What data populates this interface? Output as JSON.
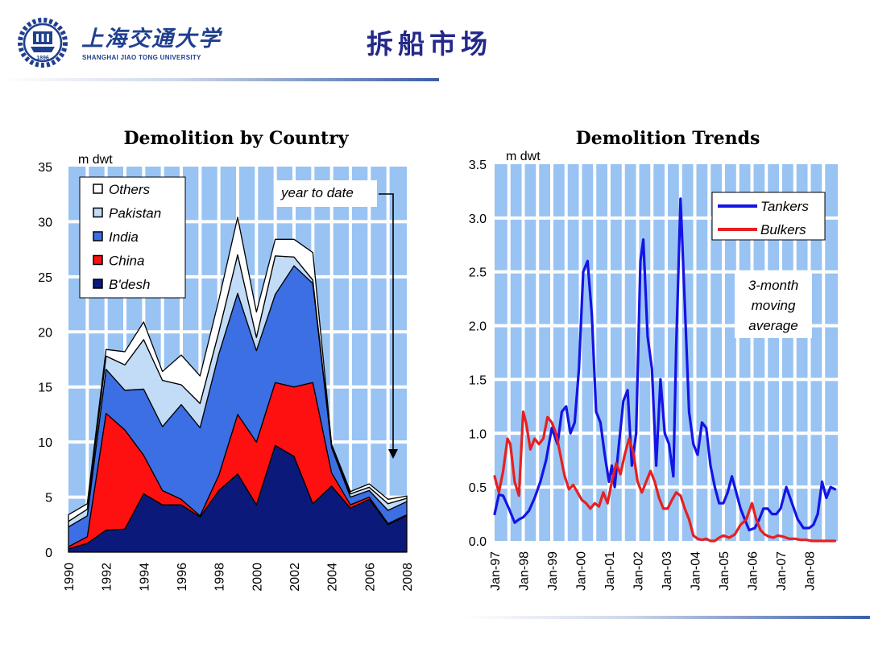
{
  "header": {
    "logo_cn": "上海交通大学",
    "logo_en": "SHANGHAI JIAO TONG UNIVERSITY",
    "logo_year": "1896",
    "slide_title": "拆船市场"
  },
  "colors": {
    "title": "#23288a",
    "plot_bg": "#99c3f2",
    "grid": "#ffffff",
    "bdesh": "#0b1a7a",
    "china": "#ff1010",
    "india": "#3b6fe3",
    "pakistan": "#c2dcf7",
    "others": "#ffffff",
    "tankers": "#1414e6",
    "bulkers": "#e62020"
  },
  "chart_data": [
    {
      "type": "area",
      "stacked": true,
      "title": "Demolition by Country",
      "ylabel": "m dwt",
      "ylim": [
        0,
        35
      ],
      "yticks": [
        0,
        5,
        10,
        15,
        20,
        25,
        30,
        35
      ],
      "xlim": [
        1990,
        2008
      ],
      "xticks": [
        1990,
        1992,
        1994,
        1996,
        1998,
        2000,
        2002,
        2004,
        2006,
        2008
      ],
      "grid": true,
      "legend": "top-left",
      "annotation": "year to date",
      "x": [
        1990,
        1991,
        1992,
        1993,
        1994,
        1995,
        1996,
        1997,
        1998,
        1999,
        2000,
        2001,
        2002,
        2003,
        2004,
        2005,
        2006,
        2007,
        2008
      ],
      "series": [
        {
          "name": "B'desh",
          "values": [
            0.3,
            0.8,
            2.0,
            2.1,
            5.3,
            4.3,
            4.3,
            3.2,
            5.6,
            7.1,
            4.3,
            9.7,
            8.7,
            4.4,
            6.0,
            4.0,
            4.8,
            2.5,
            3.3
          ]
        },
        {
          "name": "China",
          "values": [
            0.2,
            0.6,
            10.6,
            9.0,
            3.5,
            1.3,
            0.5,
            0.1,
            1.4,
            5.4,
            5.7,
            5.7,
            6.3,
            11.0,
            1.2,
            0.3,
            0.2,
            0.1,
            0.1
          ]
        },
        {
          "name": "India",
          "values": [
            1.8,
            1.9,
            4.0,
            3.6,
            6.0,
            5.8,
            8.6,
            8.0,
            11.0,
            11.0,
            8.3,
            8.0,
            11.0,
            9.0,
            2.3,
            0.7,
            0.6,
            1.2,
            1.2
          ]
        },
        {
          "name": "Pakistan",
          "values": [
            0.5,
            0.6,
            1.2,
            2.3,
            4.5,
            4.2,
            1.8,
            2.2,
            2.0,
            3.5,
            1.2,
            3.5,
            0.8,
            0.3,
            0.1,
            0.3,
            0.3,
            0.6,
            0.3
          ]
        },
        {
          "name": "Others",
          "values": [
            0.6,
            0.5,
            0.6,
            1.2,
            1.6,
            0.8,
            2.7,
            2.5,
            2.9,
            3.4,
            2.3,
            1.5,
            1.6,
            2.5,
            0.2,
            0.2,
            0.3,
            0.4,
            0.2
          ]
        }
      ]
    },
    {
      "type": "line",
      "title": "Demolition Trends",
      "ylabel": "m dwt",
      "ylim": [
        0,
        3.5
      ],
      "yticks": [
        "0.0",
        "0.5",
        "1.0",
        "1.5",
        "2.0",
        "2.5",
        "3.0",
        "3.5"
      ],
      "xlim": [
        1997.0,
        2009.0
      ],
      "xtick_labels": [
        "Jan-97",
        "Jan-98",
        "Jan-99",
        "Jan-00",
        "Jan-01",
        "Jan-02",
        "Jan-03",
        "Jan-04",
        "Jan-05",
        "Jan-06",
        "Jan-07",
        "Jan-08"
      ],
      "grid": true,
      "legend": "top-right",
      "annotation": "3-month moving average",
      "series": [
        {
          "name": "Tankers",
          "x": [
            1997.0,
            1997.15,
            1997.3,
            1997.5,
            1997.7,
            1997.85,
            1998.0,
            1998.2,
            1998.4,
            1998.6,
            1998.8,
            1999.0,
            1999.2,
            1999.35,
            1999.5,
            1999.65,
            1999.8,
            1999.95,
            2000.1,
            2000.25,
            2000.4,
            2000.55,
            2000.7,
            2000.85,
            2001.0,
            2001.1,
            2001.2,
            2001.35,
            2001.5,
            2001.65,
            2001.8,
            2001.95,
            2002.1,
            2002.2,
            2002.35,
            2002.5,
            2002.65,
            2002.8,
            2002.95,
            2003.1,
            2003.25,
            2003.35,
            2003.5,
            2003.65,
            2003.8,
            2003.95,
            2004.1,
            2004.25,
            2004.4,
            2004.55,
            2004.7,
            2004.85,
            2005.0,
            2005.15,
            2005.3,
            2005.45,
            2005.6,
            2005.75,
            2005.9,
            2006.1,
            2006.25,
            2006.4,
            2006.55,
            2006.7,
            2006.85,
            2007.0,
            2007.2,
            2007.4,
            2007.6,
            2007.8,
            2008.0,
            2008.15,
            2008.3,
            2008.45,
            2008.6,
            2008.75,
            2008.9
          ],
          "values": [
            0.25,
            0.43,
            0.42,
            0.3,
            0.17,
            0.2,
            0.22,
            0.28,
            0.4,
            0.55,
            0.75,
            1.05,
            0.9,
            1.2,
            1.25,
            1.0,
            1.1,
            1.6,
            2.5,
            2.6,
            2.1,
            1.2,
            1.1,
            0.8,
            0.55,
            0.7,
            0.5,
            0.9,
            1.3,
            1.4,
            0.7,
            1.0,
            2.6,
            2.8,
            1.9,
            1.6,
            0.7,
            1.5,
            1.0,
            0.9,
            0.6,
            1.8,
            3.18,
            2.2,
            1.2,
            0.9,
            0.8,
            1.1,
            1.05,
            0.7,
            0.5,
            0.35,
            0.35,
            0.45,
            0.6,
            0.45,
            0.3,
            0.2,
            0.1,
            0.12,
            0.2,
            0.3,
            0.3,
            0.25,
            0.25,
            0.3,
            0.5,
            0.35,
            0.2,
            0.12,
            0.12,
            0.15,
            0.25,
            0.55,
            0.4,
            0.5,
            0.48
          ]
        },
        {
          "name": "Bulkers",
          "x": [
            1997.0,
            1997.15,
            1997.3,
            1997.45,
            1997.55,
            1997.7,
            1997.85,
            1998.0,
            1998.1,
            1998.25,
            1998.4,
            1998.55,
            1998.7,
            1998.85,
            1999.0,
            1999.15,
            1999.3,
            1999.45,
            1999.6,
            1999.75,
            1999.9,
            2000.05,
            2000.2,
            2000.35,
            2000.5,
            2000.65,
            2000.8,
            2000.95,
            2001.1,
            2001.25,
            2001.4,
            2001.55,
            2001.7,
            2001.85,
            2002.0,
            2002.15,
            2002.3,
            2002.45,
            2002.6,
            2002.75,
            2002.9,
            2003.05,
            2003.2,
            2003.35,
            2003.5,
            2003.65,
            2003.8,
            2003.95,
            2004.1,
            2004.25,
            2004.4,
            2004.55,
            2004.7,
            2004.85,
            2005.0,
            2005.2,
            2005.4,
            2005.6,
            2005.8,
            2006.0,
            2006.15,
            2006.3,
            2006.45,
            2006.6,
            2006.75,
            2006.9,
            2007.1,
            2007.3,
            2007.5,
            2007.7,
            2007.9,
            2008.1,
            2008.3,
            2008.5,
            2008.7,
            2008.9
          ],
          "values": [
            0.6,
            0.45,
            0.65,
            0.95,
            0.9,
            0.55,
            0.42,
            1.2,
            1.1,
            0.85,
            0.95,
            0.9,
            0.95,
            1.15,
            1.1,
            1.0,
            0.8,
            0.6,
            0.48,
            0.52,
            0.45,
            0.38,
            0.35,
            0.3,
            0.35,
            0.32,
            0.45,
            0.35,
            0.55,
            0.72,
            0.62,
            0.8,
            0.95,
            0.82,
            0.55,
            0.45,
            0.55,
            0.65,
            0.55,
            0.4,
            0.3,
            0.3,
            0.38,
            0.45,
            0.42,
            0.3,
            0.2,
            0.05,
            0.02,
            0.01,
            0.02,
            0.0,
            0.0,
            0.03,
            0.05,
            0.03,
            0.06,
            0.15,
            0.2,
            0.35,
            0.2,
            0.1,
            0.06,
            0.04,
            0.03,
            0.05,
            0.04,
            0.02,
            0.02,
            0.01,
            0.01,
            0.0,
            0.0,
            0.0,
            0.0,
            0.0
          ]
        }
      ]
    }
  ]
}
